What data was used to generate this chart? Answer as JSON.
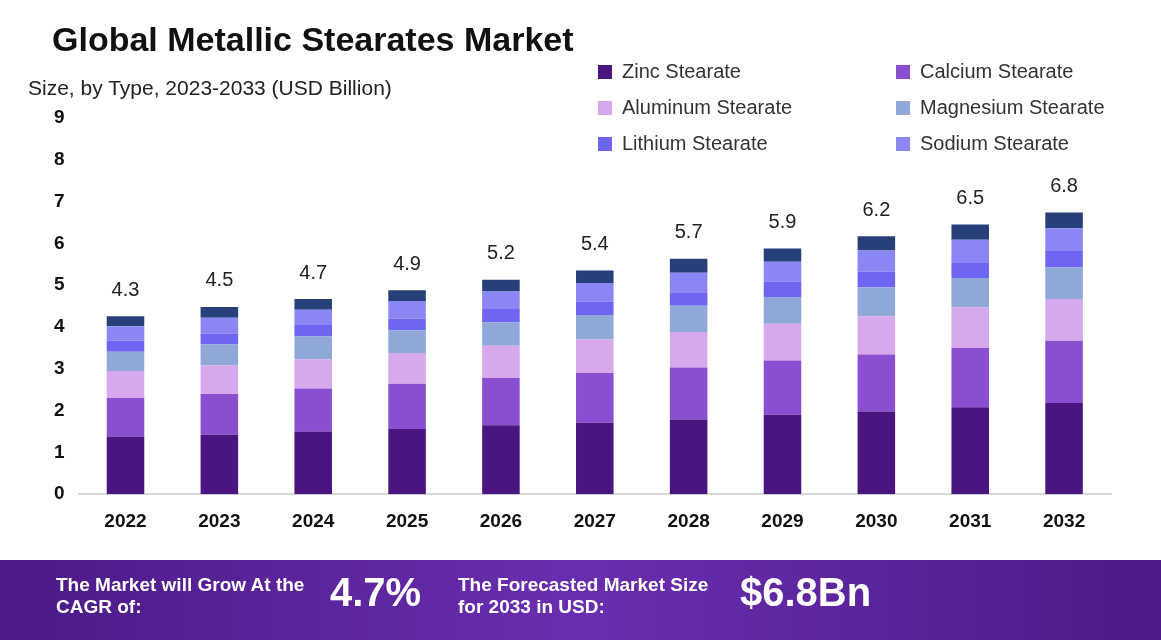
{
  "chart_data": {
    "type": "bar",
    "title": "Global Metallic Stearates Market",
    "subtitle": "Size, by Type, 2023-2033 (USD Billion)",
    "categories": [
      "2022",
      "2023",
      "2024",
      "2025",
      "2026",
      "2027",
      "2028",
      "2029",
      "2030",
      "2031",
      "2032"
    ],
    "stacked": true,
    "ylim": [
      0,
      9
    ],
    "yticks": [
      0,
      1,
      2,
      3,
      4,
      5,
      6,
      7,
      8,
      9
    ],
    "grid": false,
    "legend": "top right",
    "series": [
      {
        "name": "Zinc Stearate",
        "color": "#4a1580",
        "values": [
          1.38,
          1.42,
          1.5,
          1.56,
          1.65,
          1.71,
          1.79,
          1.9,
          1.98,
          2.08,
          2.18
        ]
      },
      {
        "name": "Calcium Stearate",
        "color": "#8a4fd0",
        "values": [
          0.92,
          0.98,
          1.03,
          1.08,
          1.13,
          1.19,
          1.24,
          1.3,
          1.36,
          1.42,
          1.49
        ]
      },
      {
        "name": "Aluminum Stearate",
        "color": "#d7a8ec",
        "values": [
          0.65,
          0.68,
          0.7,
          0.74,
          0.77,
          0.8,
          0.85,
          0.88,
          0.92,
          0.97,
          1.0
        ]
      },
      {
        "name": "Magnesium Stearate",
        "color": "#8fa8d8",
        "values": [
          0.46,
          0.5,
          0.54,
          0.54,
          0.56,
          0.59,
          0.63,
          0.64,
          0.69,
          0.7,
          0.76
        ]
      },
      {
        "name": "Lithium Stearate",
        "color": "#6e66f2",
        "values": [
          0.26,
          0.26,
          0.28,
          0.28,
          0.32,
          0.32,
          0.32,
          0.36,
          0.38,
          0.38,
          0.39
        ]
      },
      {
        "name": "Sodium Stearate",
        "color": "#8a86f5",
        "values": [
          0.35,
          0.38,
          0.36,
          0.42,
          0.42,
          0.44,
          0.47,
          0.48,
          0.5,
          0.54,
          0.54
        ]
      },
      {
        "color": "#27407a",
        "values": [
          0.24,
          0.26,
          0.26,
          0.26,
          0.28,
          0.3,
          0.33,
          0.32,
          0.34,
          0.36,
          0.38
        ]
      }
    ],
    "totals": [
      "4.3",
      "4.5",
      "4.7",
      "4.9",
      "5.2",
      "5.4",
      "5.7",
      "5.9",
      "6.2",
      "6.5",
      "6.8"
    ],
    "annotations": [
      "The Market will Grow At the CAGR of:",
      "4.7%",
      "The Forecasted Market Size for 2033 in USD:",
      "$6.8Bn"
    ]
  }
}
